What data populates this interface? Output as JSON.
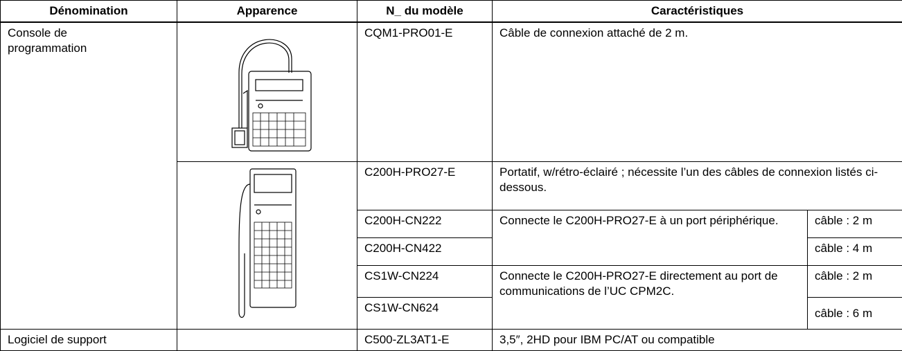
{
  "table": {
    "header": [
      "Dénomination",
      "Apparence",
      "N_ du modèle",
      "Caractéristiques"
    ],
    "rows": [
      {
        "name": "Console de programmation",
        "model": "CQM1-PRO01-E",
        "feature": "Câble de connexion attaché de 2 m."
      },
      {
        "model": "C200H-PRO27-E",
        "feature": "Portatif, w/rétro-éclairé ; nécessite l’un des câbles de connexion listés ci-dessous."
      },
      {
        "model": "C200H-CN222",
        "feature": "Connecte le C200H-PRO27-E à un port périphérique.",
        "cable": "câble : 2 m"
      },
      {
        "model": "C200H-CN422",
        "cable": "câble : 4 m"
      },
      {
        "model": "CS1W-CN224",
        "feature": "Connecte le C200H-PRO27-E directement au port de communications de l’UC CPM2C.",
        "cable": "câble : 2 m"
      },
      {
        "model": "CS1W-CN624",
        "cable": "câble : 6 m"
      },
      {
        "name": "Logiciel de support",
        "model": "C500-ZL3AT1-E",
        "feature": "3,5″, 2HD pour IBM PC/AT ou compatible"
      }
    ]
  }
}
